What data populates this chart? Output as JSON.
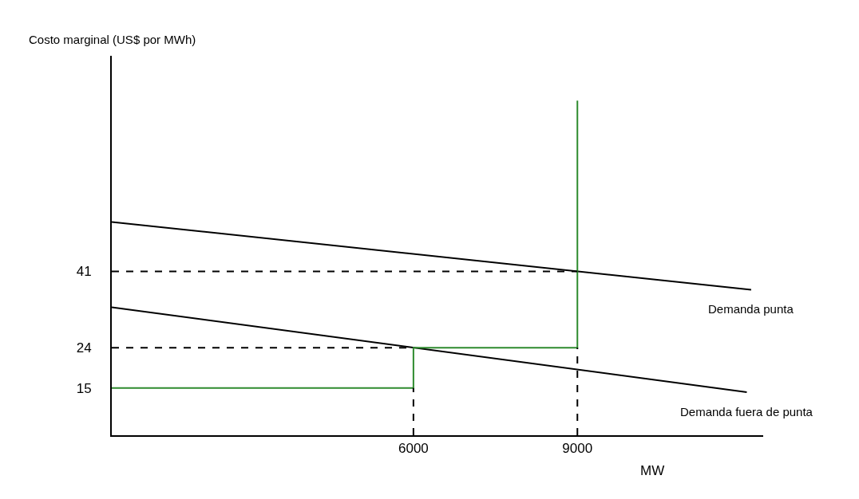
{
  "chart_data": {
    "type": "line",
    "xlabel": "MW",
    "ylabel": "Costo marginal (US$ por MWh)",
    "xlim": [
      480,
      12400
    ],
    "ylim": [
      4.5,
      89
    ],
    "xticks": [
      6000,
      9000
    ],
    "yticks": [
      15,
      24,
      41
    ],
    "legend": false,
    "marker": "none",
    "series": [
      {
        "name": "Demanda punta",
        "color": "#000000",
        "x": [
          480,
          12180
        ],
        "values": [
          52,
          36.9
        ]
      },
      {
        "name": "Demanda fuera de punta",
        "color": "#000000",
        "x": [
          480,
          12100
        ],
        "values": [
          33,
          14.1
        ]
      },
      {
        "color": "#2e8b2e",
        "x": [
          480,
          6000,
          6000,
          9000,
          9000
        ],
        "values": [
          15,
          15,
          24,
          24,
          79
        ]
      },
      {
        "color": "#000000",
        "line_style": "dashed",
        "x": [
          480,
          9000
        ],
        "values": [
          41,
          41
        ]
      },
      {
        "color": "#000000",
        "line_style": "dashed",
        "x": [
          480,
          6000
        ],
        "values": [
          24,
          24
        ]
      },
      {
        "color": "#000000",
        "line_style": "dashed",
        "x": [
          6000,
          6000
        ],
        "values": [
          4.5,
          15
        ]
      },
      {
        "color": "#000000",
        "line_style": "dashed",
        "x": [
          9000,
          9000
        ],
        "values": [
          4.5,
          24
        ]
      }
    ]
  }
}
